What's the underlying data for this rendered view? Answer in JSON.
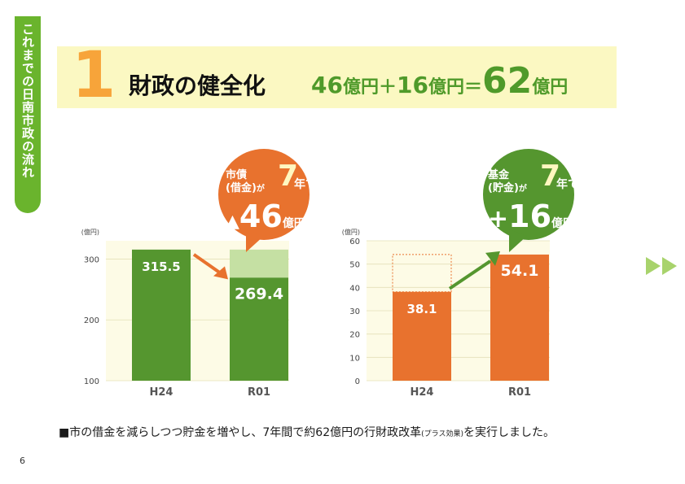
{
  "side_tab": {
    "label": "これまでの日南市政の流れ"
  },
  "banner": {
    "number": "1",
    "title": "財政の健全化",
    "formula": {
      "a": "46",
      "unit_a": "億円",
      "plus": "＋",
      "b": "16",
      "unit_b": "億円",
      "equals": "＝",
      "c": "62",
      "unit_c": "億円"
    }
  },
  "colors": {
    "green": "#55962f",
    "light_green": "#c5e0a3",
    "orange": "#e8722e",
    "chart_bg": "#fdfbe6",
    "banner_bg": "#fbf8c2"
  },
  "chart_data": [
    {
      "type": "bar",
      "unit_label": "(億円)",
      "categories": [
        "H24",
        "R01"
      ],
      "values": [
        315.5,
        269.4
      ],
      "value_labels": [
        "315.5",
        "269.4"
      ],
      "ylim": [
        100,
        330
      ],
      "yticks": [
        100,
        200,
        300
      ],
      "reference_value": 315.5,
      "annotation": {
        "line1": "市債",
        "line2": "(借金)",
        "particle": "が",
        "big": "7",
        "tail": "年で",
        "delta_mark": "▲",
        "delta": "46",
        "delta_unit": "億円"
      }
    },
    {
      "type": "bar",
      "unit_label": "(億円)",
      "categories": [
        "H24",
        "R01"
      ],
      "values": [
        38.1,
        54.1
      ],
      "value_labels": [
        "38.1",
        "54.1"
      ],
      "ylim": [
        0,
        60
      ],
      "yticks": [
        0,
        10,
        20,
        30,
        40,
        50,
        60
      ],
      "reference_value": 54.1,
      "annotation": {
        "line1": "基金",
        "line2": "(貯金)",
        "particle": "が",
        "big": "7",
        "tail": "年で",
        "delta_mark": "+",
        "delta": "16",
        "delta_unit": "億円"
      }
    }
  ],
  "footer": {
    "text": "■市の借金を減らしつつ貯金を増やし、7年間で約62億円の行財政改革",
    "small": "(プラス効果)",
    "tail": "を実行しました。"
  },
  "page_number": "6"
}
